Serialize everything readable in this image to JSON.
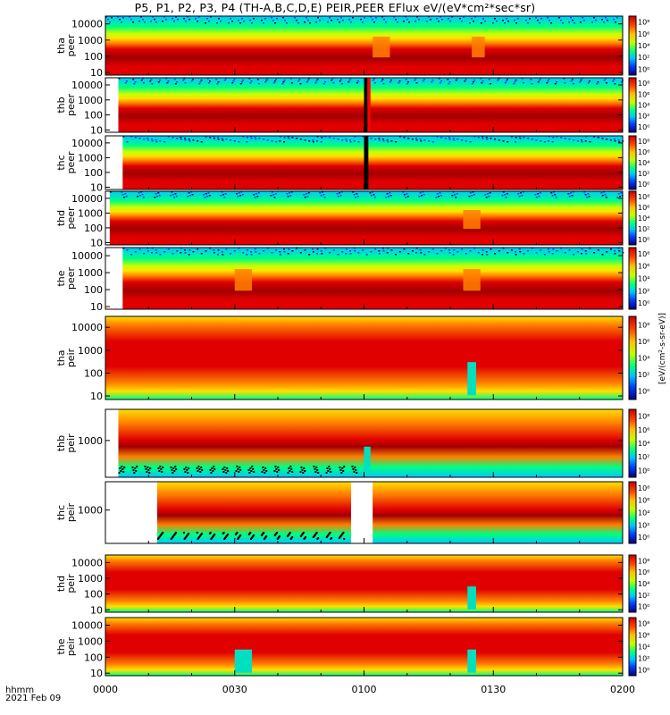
{
  "title": "P5, P1, P2, P3, P4 (TH-A,B,C,D,E) PEIR,PEER EFlux eV/(eV*cm²*sec*sr)",
  "footer": {
    "time_label": "hhmm",
    "date_label": "2021 Feb 09"
  },
  "colorbar_unit_label": "[eV/(cm²-s-sr-eV)]",
  "x_ticks": [
    "0000",
    "0030",
    "0100",
    "0130",
    "0200"
  ],
  "colorbar_ticks": [
    "10⁰",
    "10²",
    "10⁴",
    "10⁶",
    "10⁸"
  ],
  "palette": [
    "#ffffff",
    "#00c8ff",
    "#00ff80",
    "#c8ff00",
    "#ffe000",
    "#ff8000",
    "#e00000",
    "#a00000"
  ],
  "chart_data": {
    "type": "heatmap",
    "x_unit": "UT hhmm, 2021 Feb 09",
    "xlim": [
      "0000",
      "0200"
    ],
    "y_scale": "log",
    "panels": [
      {
        "id": "tha-peer",
        "name": [
          "tha",
          "peer"
        ],
        "yticks": [
          "10",
          "100",
          "1000",
          "10000"
        ],
        "ylim": [
          7,
          30000
        ],
        "clim": [
          1,
          100000000.0
        ],
        "data_start_min": 0,
        "gaps": [],
        "features": [
          {
            "t0": 62,
            "t1": 66,
            "kind": "dip"
          },
          {
            "t0": 85,
            "t1": 88,
            "kind": "dip"
          }
        ]
      },
      {
        "id": "thb-peer",
        "name": [
          "thb",
          "peer"
        ],
        "yticks": [
          "10",
          "100",
          "1000",
          "10000"
        ],
        "ylim": [
          7,
          30000
        ],
        "clim": [
          1,
          100000000.0
        ],
        "data_start_min": 3,
        "gaps": [
          {
            "t0": 60,
            "t1": 60.8,
            "kind": "black"
          },
          {
            "t0": 60.8,
            "t1": 61.5,
            "kind": "red"
          }
        ],
        "features": []
      },
      {
        "id": "thc-peer",
        "name": [
          "thc",
          "peer"
        ],
        "yticks": [
          "10",
          "100",
          "1000",
          "10000"
        ],
        "ylim": [
          7,
          30000
        ],
        "clim": [
          1,
          100000000.0
        ],
        "data_start_min": 4,
        "gaps": [
          {
            "t0": 60,
            "t1": 61,
            "kind": "black"
          }
        ],
        "features": []
      },
      {
        "id": "thd-peer",
        "name": [
          "thd",
          "peer"
        ],
        "yticks": [
          "10",
          "100",
          "1000",
          "10000"
        ],
        "ylim": [
          7,
          30000
        ],
        "clim": [
          1,
          100000000.0
        ],
        "data_start_min": 1,
        "gaps": [],
        "features": [
          {
            "t0": 83,
            "t1": 87,
            "kind": "dip"
          }
        ]
      },
      {
        "id": "the-peer",
        "name": [
          "the",
          "peer"
        ],
        "yticks": [
          "10",
          "100",
          "1000",
          "10000"
        ],
        "ylim": [
          7,
          30000
        ],
        "clim": [
          1,
          100000000.0
        ],
        "data_start_min": 4,
        "gaps": [],
        "features": [
          {
            "t0": 30,
            "t1": 34,
            "kind": "dip"
          },
          {
            "t0": 83,
            "t1": 87,
            "kind": "dip"
          }
        ]
      },
      {
        "id": "tha-peir",
        "name": [
          "tha",
          "peir"
        ],
        "yticks": [
          "10",
          "100",
          "1000",
          "10000"
        ],
        "ylim": [
          7,
          30000
        ],
        "clim": [
          1,
          100000000.0
        ],
        "data_start_min": 0,
        "gaps": [],
        "features": [
          {
            "t0": 84,
            "t1": 86,
            "kind": "cyan"
          }
        ]
      },
      {
        "id": "thb-peir",
        "name": [
          "thb",
          "peir"
        ],
        "yticks": [
          "1000"
        ],
        "ylim": [
          150,
          5000
        ],
        "clim": [
          1,
          100000000.0
        ],
        "data_start_min": 3,
        "gaps": [],
        "features": [
          {
            "t0": 60,
            "t1": 61.5,
            "kind": "cyan"
          }
        ]
      },
      {
        "id": "thc-peir",
        "name": [
          "thc",
          "peir"
        ],
        "yticks": [
          "1000"
        ],
        "ylim": [
          150,
          5000
        ],
        "clim": [
          1,
          100000000.0
        ],
        "data_start_min": 12,
        "gaps": [
          {
            "t0": 57,
            "t1": 62,
            "kind": "white"
          }
        ],
        "features": []
      },
      {
        "id": "thd-peir",
        "name": [
          "thd",
          "peir"
        ],
        "yticks": [
          "10",
          "100",
          "1000",
          "10000"
        ],
        "ylim": [
          7,
          30000
        ],
        "clim": [
          1,
          100000000.0
        ],
        "data_start_min": 0,
        "gaps": [],
        "features": [
          {
            "t0": 84,
            "t1": 86,
            "kind": "cyan"
          }
        ]
      },
      {
        "id": "the-peir",
        "name": [
          "the",
          "peir"
        ],
        "yticks": [
          "10",
          "100",
          "1000",
          "10000"
        ],
        "ylim": [
          7,
          30000
        ],
        "clim": [
          1,
          100000000.0
        ],
        "data_start_min": 0,
        "gaps": [],
        "features": [
          {
            "t0": 30,
            "t1": 34,
            "kind": "cyan"
          },
          {
            "t0": 84,
            "t1": 86,
            "kind": "cyan"
          }
        ]
      }
    ]
  }
}
